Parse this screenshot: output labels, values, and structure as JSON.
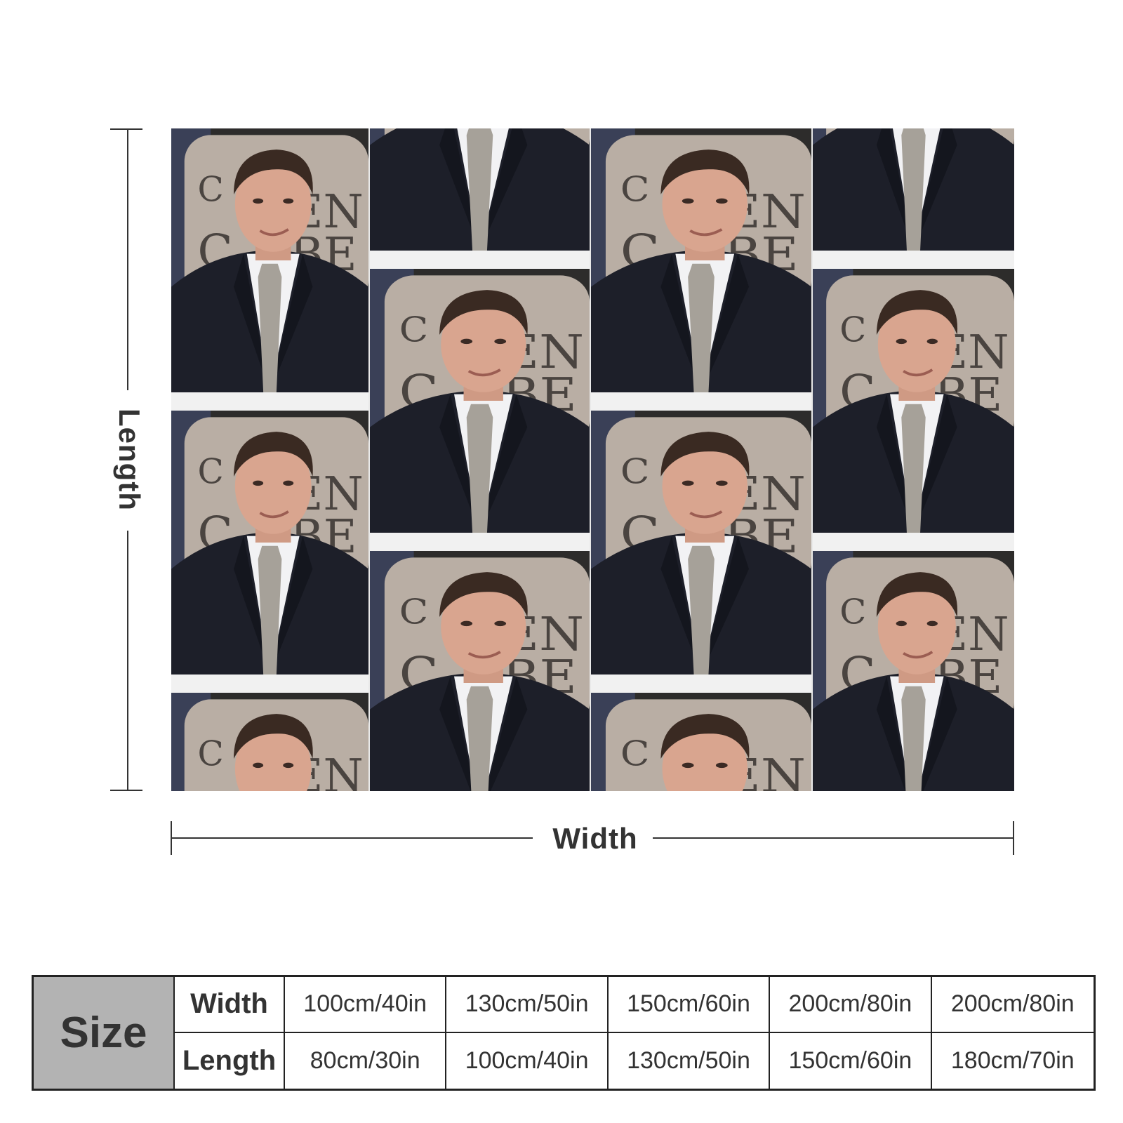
{
  "product": {
    "dimension_labels": {
      "length": "Length",
      "width": "Width"
    },
    "photo_tile": {
      "sign_text_lines": [
        "C",
        "EN",
        "BE"
      ],
      "colors": {
        "suit": "#1d1f29",
        "shirt": "#f2f2f4",
        "tie": "#a6a199",
        "skin": "#d9a58f",
        "hair": "#3a2a22",
        "sign": "#b9aea4",
        "background": "#2d2c2b"
      }
    }
  },
  "size_table": {
    "header": "Size",
    "row_labels": [
      "Width",
      "Length"
    ],
    "widths": [
      "100cm/40in",
      "130cm/50in",
      "150cm/60in",
      "200cm/80in",
      "200cm/80in"
    ],
    "lengths": [
      "80cm/30in",
      "100cm/40in",
      "130cm/50in",
      "150cm/60in",
      "180cm/70in"
    ]
  }
}
